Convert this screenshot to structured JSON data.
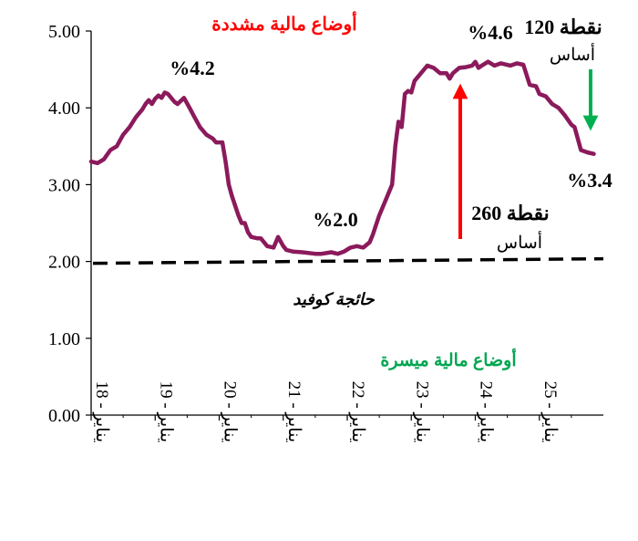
{
  "chart_data": {
    "type": "line",
    "title": "",
    "xlabel": "",
    "ylabel": "",
    "ylim": [
      0,
      5
    ],
    "xlim": [
      18.0,
      25.95
    ],
    "grid": false,
    "legend": "none",
    "y_ticks": [
      "0.00",
      "1.00",
      "2.00",
      "3.00",
      "4.00",
      "5.00"
    ],
    "x_ticks": [
      {
        "x": 18,
        "label": "يناير - 18"
      },
      {
        "x": 19,
        "label": "يناير - 19"
      },
      {
        "x": 20,
        "label": "يناير - 20"
      },
      {
        "x": 21,
        "label": "يناير - 21"
      },
      {
        "x": 22,
        "label": "يناير - 22"
      },
      {
        "x": 23,
        "label": "يناير - 23"
      },
      {
        "x": 24,
        "label": "يناير - 24"
      },
      {
        "x": 25,
        "label": "يناير - 25"
      }
    ],
    "series": [
      {
        "name": "",
        "color": "#8b1a5c",
        "points": [
          [
            18.0,
            3.3
          ],
          [
            18.1,
            3.28
          ],
          [
            18.2,
            3.33
          ],
          [
            18.3,
            3.45
          ],
          [
            18.4,
            3.5
          ],
          [
            18.5,
            3.65
          ],
          [
            18.6,
            3.75
          ],
          [
            18.7,
            3.88
          ],
          [
            18.8,
            3.98
          ],
          [
            18.85,
            4.05
          ],
          [
            18.9,
            4.1
          ],
          [
            18.95,
            4.05
          ],
          [
            19.0,
            4.12
          ],
          [
            19.05,
            4.16
          ],
          [
            19.1,
            4.13
          ],
          [
            19.15,
            4.2
          ],
          [
            19.2,
            4.18
          ],
          [
            19.3,
            4.08
          ],
          [
            19.35,
            4.05
          ],
          [
            19.45,
            4.13
          ],
          [
            19.55,
            3.98
          ],
          [
            19.6,
            3.9
          ],
          [
            19.7,
            3.75
          ],
          [
            19.8,
            3.65
          ],
          [
            19.9,
            3.6
          ],
          [
            19.95,
            3.55
          ],
          [
            20.05,
            3.55
          ],
          [
            20.1,
            3.3
          ],
          [
            20.15,
            3.0
          ],
          [
            20.2,
            2.85
          ],
          [
            20.3,
            2.6
          ],
          [
            20.35,
            2.5
          ],
          [
            20.4,
            2.5
          ],
          [
            20.45,
            2.38
          ],
          [
            20.5,
            2.32
          ],
          [
            20.6,
            2.3
          ],
          [
            20.65,
            2.3
          ],
          [
            20.75,
            2.2
          ],
          [
            20.85,
            2.18
          ],
          [
            20.92,
            2.32
          ],
          [
            21.0,
            2.2
          ],
          [
            21.05,
            2.15
          ],
          [
            21.15,
            2.13
          ],
          [
            21.3,
            2.12
          ],
          [
            21.5,
            2.1
          ],
          [
            21.6,
            2.1
          ],
          [
            21.75,
            2.12
          ],
          [
            21.85,
            2.1
          ],
          [
            21.95,
            2.13
          ],
          [
            22.05,
            2.18
          ],
          [
            22.15,
            2.2
          ],
          [
            22.25,
            2.18
          ],
          [
            22.35,
            2.25
          ],
          [
            22.4,
            2.35
          ],
          [
            22.5,
            2.6
          ],
          [
            22.6,
            2.8
          ],
          [
            22.7,
            3.0
          ],
          [
            22.75,
            3.5
          ],
          [
            22.8,
            3.82
          ],
          [
            22.85,
            3.75
          ],
          [
            22.9,
            4.18
          ],
          [
            22.95,
            4.22
          ],
          [
            23.0,
            4.2
          ],
          [
            23.05,
            4.35
          ],
          [
            23.15,
            4.45
          ],
          [
            23.25,
            4.55
          ],
          [
            23.35,
            4.52
          ],
          [
            23.45,
            4.45
          ],
          [
            23.55,
            4.45
          ],
          [
            23.6,
            4.38
          ],
          [
            23.65,
            4.45
          ],
          [
            23.75,
            4.52
          ],
          [
            23.85,
            4.53
          ],
          [
            23.95,
            4.55
          ],
          [
            24.0,
            4.6
          ],
          [
            24.05,
            4.52
          ],
          [
            24.1,
            4.55
          ],
          [
            24.2,
            4.6
          ],
          [
            24.3,
            4.55
          ],
          [
            24.4,
            4.58
          ],
          [
            24.55,
            4.55
          ],
          [
            24.65,
            4.58
          ],
          [
            24.75,
            4.56
          ],
          [
            24.85,
            4.3
          ],
          [
            24.95,
            4.28
          ],
          [
            25.0,
            4.18
          ],
          [
            25.1,
            4.15
          ],
          [
            25.2,
            4.05
          ],
          [
            25.3,
            4.0
          ],
          [
            25.4,
            3.9
          ],
          [
            25.5,
            3.78
          ],
          [
            25.55,
            3.75
          ],
          [
            25.6,
            3.6
          ],
          [
            25.65,
            3.45
          ],
          [
            25.75,
            3.42
          ],
          [
            25.85,
            3.4
          ]
        ]
      }
    ],
    "reference_line": {
      "y": 2.0,
      "label": "حائجة كوفيد",
      "style": "dashed"
    },
    "annotations": {
      "tightened": "أوضاع مالية مشددة",
      "eased": "أوضاع مالية ميسرة",
      "peak_2019": "%4.2",
      "low_2021": "%2.0",
      "peak_2024": "%4.6",
      "latest": "%3.4",
      "up_bp_value": "260 نقطة",
      "up_bp_unit": "أساس",
      "down_bp_value": "120 نقطة",
      "down_bp_unit": "أساس"
    },
    "colors": {
      "line": "#8b1a5c",
      "up_arrow": "#ff0000",
      "down_arrow": "#00b050",
      "tightened_text": "#ff0000",
      "eased_text": "#00a651"
    }
  }
}
